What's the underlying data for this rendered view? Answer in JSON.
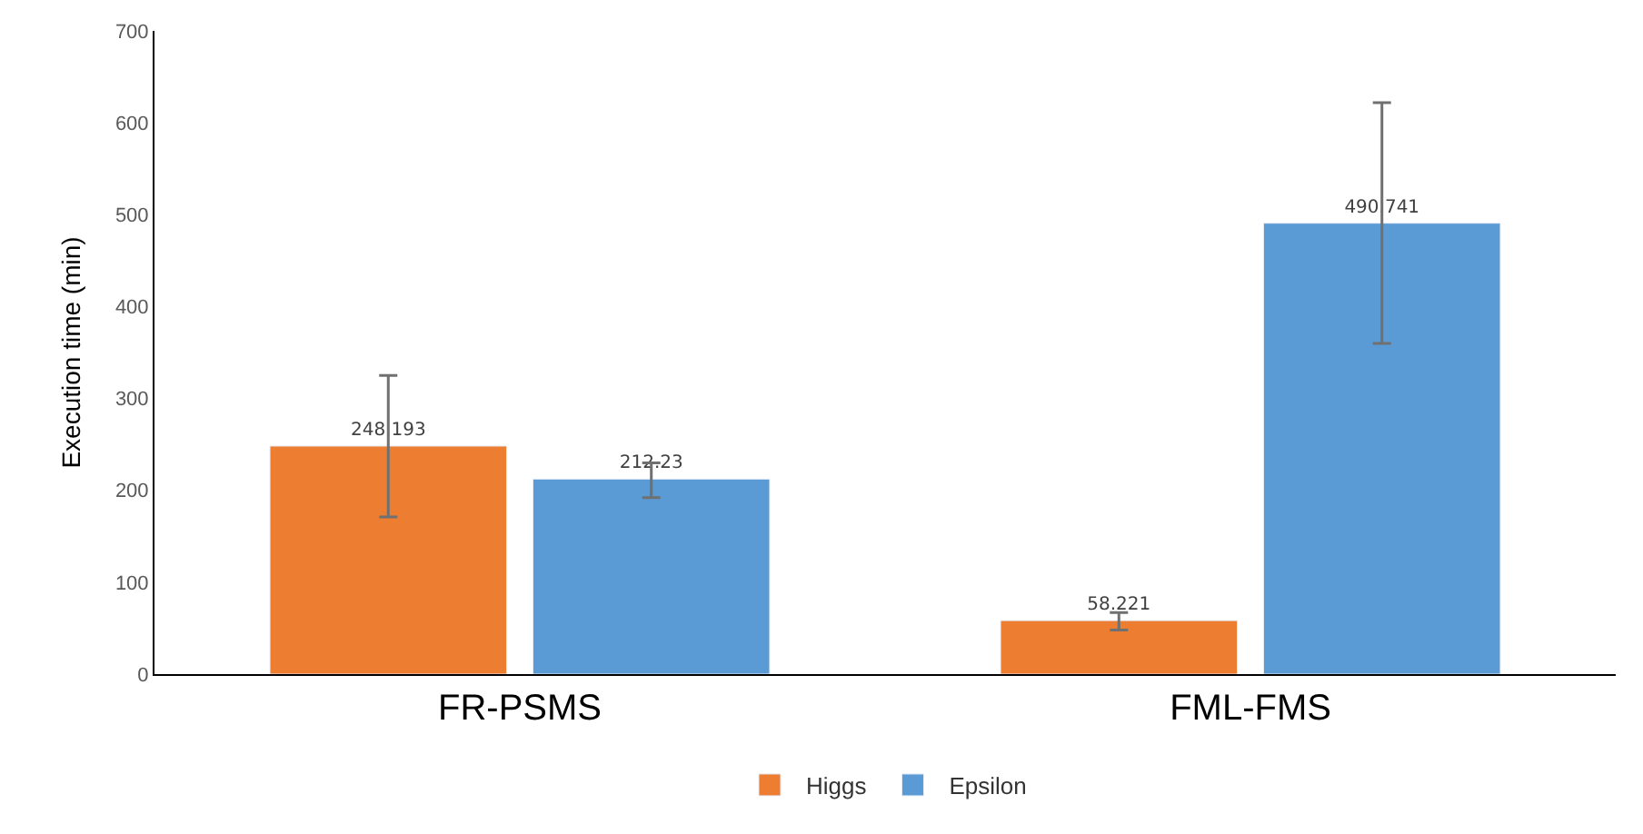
{
  "chart_data": {
    "type": "bar",
    "ylabel": "Execution time (min)",
    "categories": [
      "FR-PSMS",
      "FML-FMS"
    ],
    "series": [
      {
        "name": "Higgs",
        "color": "#ed7d31",
        "values": [
          248.193,
          58.221
        ],
        "errors": [
          [
            171,
            325
          ],
          [
            48,
            67
          ]
        ]
      },
      {
        "name": "Epsilon",
        "color": "#5b9bd5",
        "values": [
          212.23,
          490.741
        ],
        "errors": [
          [
            192,
            230
          ],
          [
            360,
            622
          ]
        ]
      }
    ],
    "ylim": [
      0,
      700
    ],
    "yticks": [
      0,
      100,
      200,
      300,
      400,
      500,
      600,
      700
    ],
    "legend": "bottom",
    "data_labels": true
  }
}
